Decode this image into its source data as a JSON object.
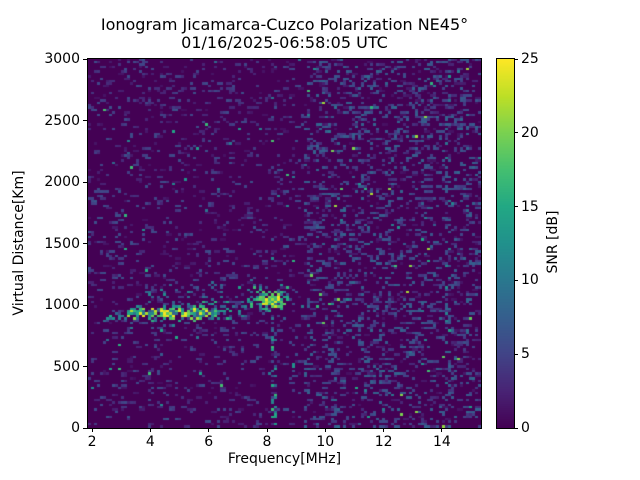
{
  "chart_data": {
    "type": "heatmap",
    "title": "Ionogram Jicamarca-Cuzco Polarization NE45°",
    "subtitle": "01/16/2025-06:58:05 UTC",
    "xlabel": "Frequency[MHz]",
    "ylabel": "Virtual Distance[Km]",
    "x_range_mhz": [
      1.86,
      15.34
    ],
    "y_range_km": [
      0,
      3000
    ],
    "x_ticks": [
      2,
      4,
      6,
      8,
      10,
      12,
      14
    ],
    "y_ticks": [
      0,
      500,
      1000,
      1500,
      2000,
      2500,
      3000
    ],
    "grid": false,
    "legend": "none",
    "colorbar": {
      "label": "SNR [dB]",
      "range_db": [
        0,
        25
      ],
      "ticks": [
        0,
        5,
        10,
        15,
        20,
        25
      ],
      "colormap": "viridis",
      "stops": [
        "#440154",
        "#482475",
        "#414487",
        "#355f8d",
        "#2a788e",
        "#21918c",
        "#22a884",
        "#44bf70",
        "#7ad151",
        "#bddf26",
        "#fde725"
      ]
    },
    "background_color": "#440154",
    "heatmap_model": {
      "render": {
        "cols": 131,
        "rows": 154,
        "seed": 42,
        "dash_chance": 0.35
      },
      "background_noise": [
        {
          "f0": 1.86,
          "f1": 9.3,
          "density": 0.11,
          "vmin": 1,
          "vmax": 6,
          "bright_chance": 0.004,
          "bright_vmin": 8,
          "bright_vmax": 18
        },
        {
          "f0": 9.3,
          "f1": 15.34,
          "density": 0.22,
          "vmin": 1,
          "vmax": 8,
          "bright_chance": 0.007,
          "bright_vmin": 9,
          "bright_vmax": 22
        }
      ],
      "echo_trace": [
        {
          "name": "e-tail",
          "f0": 2.35,
          "f1": 3.2,
          "alt_center": 895,
          "alt_spread": 30,
          "density": 0.5,
          "vmin": 4,
          "vmax": 16
        },
        {
          "name": "main-band",
          "f0": 3.2,
          "f1": 6.4,
          "alt_center": 930,
          "alt_spread": 55,
          "density": 0.85,
          "vmin": 6,
          "vmax": 25
        },
        {
          "name": "diffuse-above",
          "f0": 3.8,
          "f1": 6.6,
          "alt_center": 1090,
          "alt_spread": 90,
          "density": 0.18,
          "vmin": 3,
          "vmax": 12
        },
        {
          "name": "mid-weak",
          "f0": 6.4,
          "f1": 7.35,
          "alt_center": 980,
          "alt_spread": 70,
          "density": 0.35,
          "vmin": 4,
          "vmax": 16
        },
        {
          "name": "f-cluster",
          "f0": 7.35,
          "f1": 8.75,
          "alt_center": 1060,
          "alt_spread": 95,
          "density": 0.55,
          "vmin": 5,
          "vmax": 20
        },
        {
          "name": "f-cluster-core",
          "f0": 7.8,
          "f1": 8.55,
          "alt_center": 1030,
          "alt_spread": 55,
          "density": 0.92,
          "vmin": 14,
          "vmax": 25
        }
      ],
      "rfi_stripes": [
        {
          "f": 8.22,
          "w": 0.18,
          "alt0": 0,
          "alt1": 900,
          "density": 0.4,
          "vmin": 3,
          "vmax": 18
        },
        {
          "f": 4.35,
          "w": 0.12,
          "alt0": 100,
          "alt1": 800,
          "density": 0.1,
          "vmin": 4,
          "vmax": 16
        },
        {
          "f": 3.25,
          "w": 0.1,
          "alt0": 0,
          "alt1": 2800,
          "density": 0.05,
          "vmin": 3,
          "vmax": 12
        },
        {
          "f": 9.62,
          "w": 0.12,
          "alt0": 0,
          "alt1": 3000,
          "density": 0.08,
          "vmin": 2,
          "vmax": 8
        },
        {
          "f": 10.4,
          "w": 0.15,
          "alt0": 0,
          "alt1": 3000,
          "density": 0.1,
          "vmin": 2,
          "vmax": 9
        },
        {
          "f": 11.3,
          "w": 0.12,
          "alt0": 0,
          "alt1": 3000,
          "density": 0.08,
          "vmin": 2,
          "vmax": 8
        },
        {
          "f": 12.15,
          "w": 0.12,
          "alt0": 0,
          "alt1": 3000,
          "density": 0.08,
          "vmin": 2,
          "vmax": 8
        },
        {
          "f": 13.0,
          "w": 0.12,
          "alt0": 0,
          "alt1": 3000,
          "density": 0.08,
          "vmin": 2,
          "vmax": 9
        },
        {
          "f": 14.2,
          "w": 0.15,
          "alt0": 0,
          "alt1": 3000,
          "density": 0.12,
          "vmin": 2,
          "vmax": 12
        },
        {
          "f": 14.9,
          "w": 0.12,
          "alt0": 0,
          "alt1": 3000,
          "density": 0.1,
          "vmin": 2,
          "vmax": 10
        }
      ]
    }
  }
}
